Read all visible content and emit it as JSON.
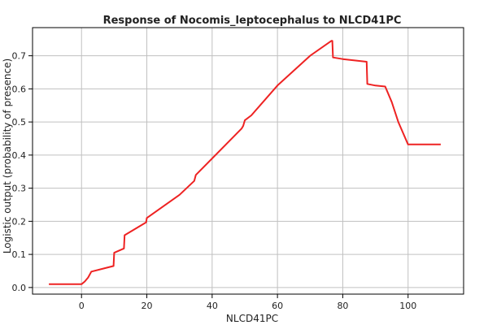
{
  "chart_data": {
    "type": "line",
    "title": "Response of Nocomis_leptocephalus to NLCD41PC",
    "xlabel": "NLCD41PC",
    "ylabel": "Logistic output (probability of presence)",
    "xlim": [
      -15,
      117
    ],
    "ylim": [
      -0.02,
      0.785
    ],
    "x_ticks": [
      0,
      20,
      40,
      60,
      80,
      100
    ],
    "y_ticks": [
      0.0,
      0.1,
      0.2,
      0.3,
      0.4,
      0.5,
      0.6,
      0.7
    ],
    "x_tick_labels": [
      "0",
      "20",
      "40",
      "60",
      "80",
      "100"
    ],
    "y_tick_labels": [
      "0.0",
      "0.1",
      "0.2",
      "0.3",
      "0.4",
      "0.5",
      "0.6",
      "0.7"
    ],
    "grid": true,
    "colors": {
      "line": "#ee2222",
      "grid": "#c0c0c0",
      "axis": "#000000"
    },
    "series": [
      {
        "x": [
          -10,
          0,
          1,
          2,
          3,
          9.8,
          10,
          13,
          13.2,
          19.8,
          20,
          30,
          34.5,
          35,
          49,
          49.5,
          50,
          52,
          60,
          70,
          76.5,
          76.8,
          77,
          80,
          87.3,
          87.5,
          90,
          93,
          95,
          97,
          100,
          110
        ],
        "y": [
          0.01,
          0.01,
          0.018,
          0.03,
          0.048,
          0.065,
          0.105,
          0.118,
          0.158,
          0.197,
          0.21,
          0.28,
          0.322,
          0.34,
          0.48,
          0.488,
          0.505,
          0.52,
          0.61,
          0.7,
          0.745,
          0.745,
          0.695,
          0.69,
          0.682,
          0.615,
          0.61,
          0.607,
          0.56,
          0.5,
          0.432,
          0.432
        ]
      }
    ]
  }
}
